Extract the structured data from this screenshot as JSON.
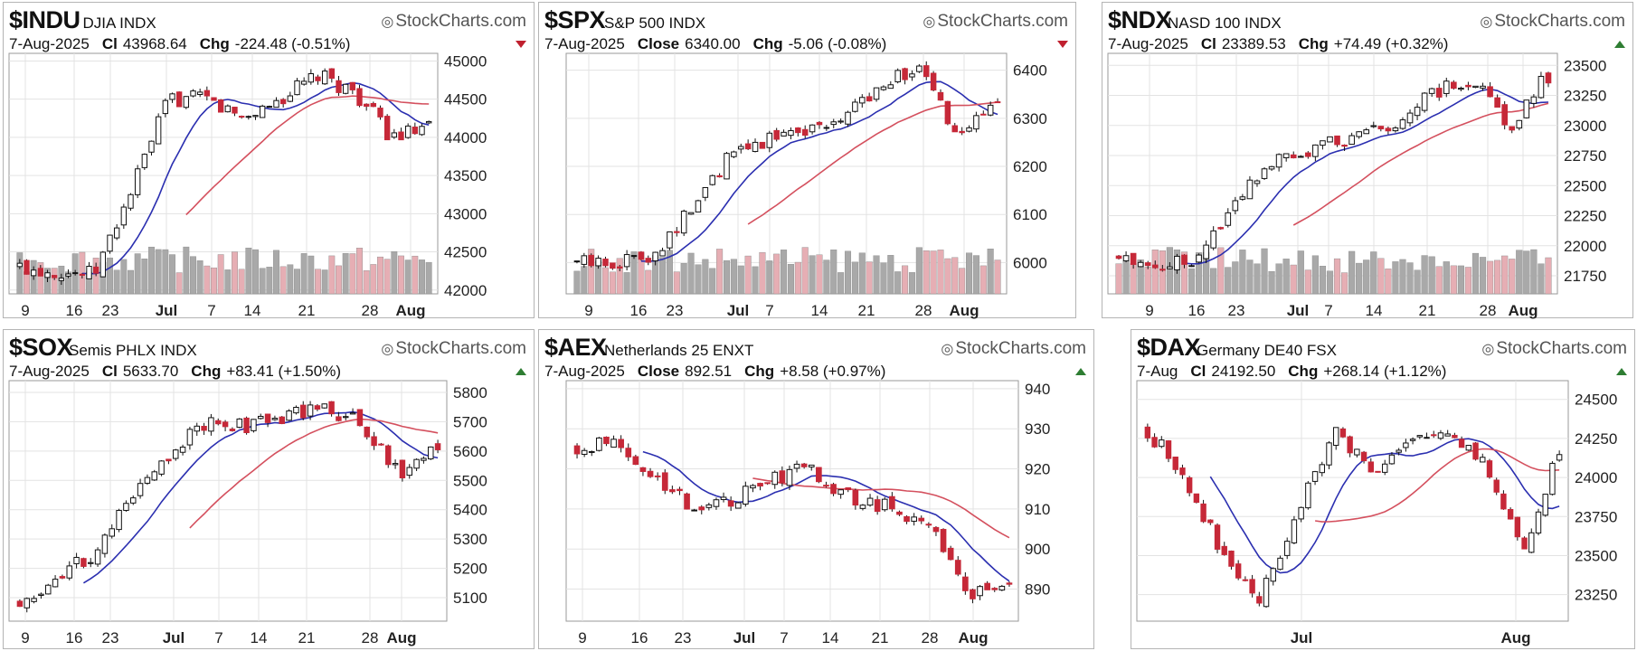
{
  "colors": {
    "up": "#ffffff",
    "down": "#c62838",
    "volume_up": "#a9a9a9",
    "volume_down": "#e6aeb4",
    "sma_fast": "#2b2fb0",
    "sma_slow": "#d4505e",
    "grid": "#e3e3e3",
    "accent_down": "#c0202f",
    "accent_up": "#2e7d32"
  },
  "logo_text": "StockCharts.com",
  "chart_data": [
    {
      "type": "candlestick",
      "symbol": "$INDU",
      "name": "DJIA",
      "exchange": "INDX",
      "date": "7-Aug-2025",
      "close_label": "Cl",
      "close_value": "43968.64",
      "chg_label": "Chg",
      "chg_value": "-224.48 (-0.51%)",
      "direction": "down",
      "x_labels": [
        "9",
        "16",
        "23",
        "Jul",
        "7",
        "14",
        "21",
        "28",
        "Aug"
      ],
      "y_ticks": [
        42000,
        42500,
        43000,
        43500,
        44000,
        44500,
        45000
      ],
      "y_tick_labels": [
        "42000",
        "42500",
        "43000",
        "43500",
        "44000",
        "44500",
        "45000"
      ],
      "ylim": [
        41950,
        45100
      ],
      "grid": true
    },
    {
      "type": "candlestick",
      "symbol": "$SPX",
      "name": "S&P 500",
      "exchange": "INDX",
      "date": "7-Aug-2025",
      "close_label": "Close",
      "close_value": "6340.00",
      "chg_label": "Chg",
      "chg_value": "-5.06 (-0.08%)",
      "direction": "down",
      "x_labels": [
        "9",
        "16",
        "23",
        "Jul",
        "7",
        "14",
        "21",
        "28",
        "Aug"
      ],
      "y_ticks": [
        6000,
        6100,
        6200,
        6300,
        6400
      ],
      "y_tick_labels": [
        "6000",
        "6100",
        "6200",
        "6300",
        "6400"
      ],
      "ylim": [
        5935,
        6435
      ],
      "grid": true
    },
    {
      "type": "candlestick",
      "symbol": "$NDX",
      "name": "NASD 100",
      "exchange": "INDX",
      "date": "7-Aug-2025",
      "close_label": "Cl",
      "close_value": "23389.53",
      "chg_label": "Chg",
      "chg_value": "+74.49 (+0.32%)",
      "direction": "up",
      "x_labels": [
        "9",
        "16",
        "23",
        "Jul",
        "7",
        "14",
        "21",
        "28",
        "Aug"
      ],
      "y_ticks": [
        21750,
        22000,
        22250,
        22500,
        22750,
        23000,
        23250,
        23500
      ],
      "y_tick_labels": [
        "21750",
        "22000",
        "22250",
        "22500",
        "22750",
        "23000",
        "23250",
        "23500"
      ],
      "ylim": [
        21600,
        23600
      ],
      "grid": true
    },
    {
      "type": "candlestick",
      "symbol": "$SOX",
      "name": "Semis PHLX",
      "exchange": "INDX",
      "date": "7-Aug-2025",
      "close_label": "Cl",
      "close_value": "5633.70",
      "chg_label": "Chg",
      "chg_value": "+83.41 (+1.50%)",
      "direction": "up",
      "x_labels": [
        "9",
        "16",
        "23",
        "Jul",
        "7",
        "14",
        "21",
        "28",
        "Aug"
      ],
      "y_ticks": [
        5100,
        5200,
        5300,
        5400,
        5500,
        5600,
        5700,
        5800
      ],
      "y_tick_labels": [
        "5100",
        "5200",
        "5300",
        "5400",
        "5500",
        "5600",
        "5700",
        "5800"
      ],
      "ylim": [
        5020,
        5840
      ],
      "grid": true
    },
    {
      "type": "candlestick",
      "symbol": "$AEX",
      "name": "Netherlands 25",
      "exchange": "ENXT",
      "date": "7-Aug-2025",
      "close_label": "Close",
      "close_value": "892.51",
      "chg_label": "Chg",
      "chg_value": "+8.58 (+0.97%)",
      "direction": "up",
      "x_labels": [
        "9",
        "16",
        "23",
        "Jul",
        "7",
        "14",
        "21",
        "28",
        "Aug"
      ],
      "y_ticks": [
        890,
        900,
        910,
        920,
        930,
        940
      ],
      "y_tick_labels": [
        "890",
        "900",
        "910",
        "920",
        "930",
        "940"
      ],
      "ylim": [
        882,
        942
      ],
      "grid": true
    },
    {
      "type": "candlestick",
      "symbol": "$DAX",
      "name": "Germany DE40",
      "exchange": "FSX",
      "date": "7-Aug",
      "close_label": "Cl",
      "close_value": "24192.50",
      "chg_label": "Chg",
      "chg_value": "+268.14 (+1.12%)",
      "direction": "up",
      "x_labels": [
        "Jul",
        "Aug"
      ],
      "y_ticks": [
        23250,
        23500,
        23750,
        24000,
        24250,
        24500
      ],
      "y_tick_labels": [
        "23250",
        "23500",
        "23750",
        "24000",
        "24250",
        "24500"
      ],
      "ylim": [
        23080,
        24620
      ],
      "grid": true
    }
  ]
}
